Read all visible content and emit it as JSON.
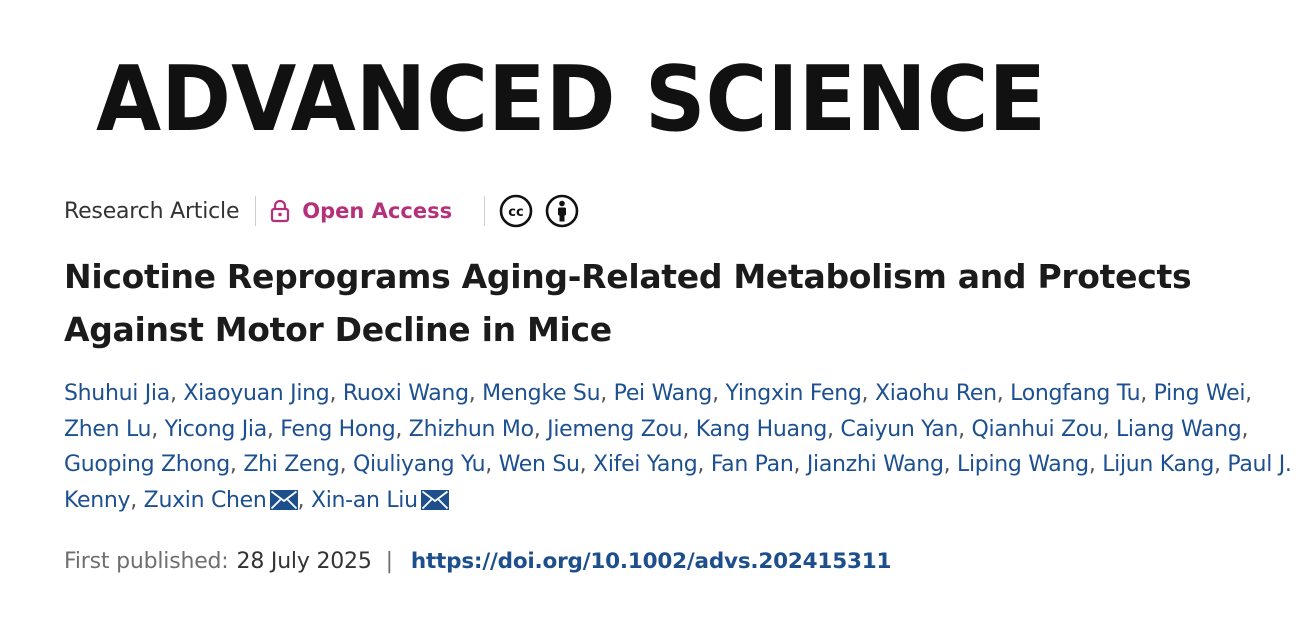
{
  "journal": {
    "name": "ADVANCED SCIENCE"
  },
  "meta": {
    "article_type": "Research Article",
    "access_label": "Open Access",
    "access_icon": "lock-icon",
    "license_icons": [
      "creative-commons-icon",
      "attribution-icon"
    ],
    "access_color": "#b5307a"
  },
  "article": {
    "title": "Nicotine Reprograms Aging-Related Metabolism and Protects Against Motor Decline in Mice"
  },
  "authors": [
    {
      "name": "Shuhui Jia",
      "corresponding": false
    },
    {
      "name": "Xiaoyuan Jing",
      "corresponding": false
    },
    {
      "name": "Ruoxi Wang",
      "corresponding": false
    },
    {
      "name": "Mengke Su",
      "corresponding": false
    },
    {
      "name": "Pei Wang",
      "corresponding": false
    },
    {
      "name": "Yingxin Feng",
      "corresponding": false
    },
    {
      "name": "Xiaohu Ren",
      "corresponding": false
    },
    {
      "name": "Longfang Tu",
      "corresponding": false
    },
    {
      "name": "Ping Wei",
      "corresponding": false
    },
    {
      "name": "Zhen Lu",
      "corresponding": false
    },
    {
      "name": "Yicong Jia",
      "corresponding": false
    },
    {
      "name": "Feng Hong",
      "corresponding": false
    },
    {
      "name": "Zhizhun Mo",
      "corresponding": false
    },
    {
      "name": "Jiemeng Zou",
      "corresponding": false
    },
    {
      "name": "Kang Huang",
      "corresponding": false
    },
    {
      "name": "Caiyun Yan",
      "corresponding": false
    },
    {
      "name": "Qianhui Zou",
      "corresponding": false
    },
    {
      "name": "Liang Wang",
      "corresponding": false
    },
    {
      "name": "Guoping Zhong",
      "corresponding": false
    },
    {
      "name": "Zhi Zeng",
      "corresponding": false
    },
    {
      "name": "Qiuliyang Yu",
      "corresponding": false
    },
    {
      "name": "Wen Su",
      "corresponding": false
    },
    {
      "name": "Xifei Yang",
      "corresponding": false
    },
    {
      "name": "Fan Pan",
      "corresponding": false
    },
    {
      "name": "Jianzhi Wang",
      "corresponding": false
    },
    {
      "name": "Liping Wang",
      "corresponding": false
    },
    {
      "name": "Lijun Kang",
      "corresponding": false
    },
    {
      "name": "Paul J. Kenny",
      "corresponding": false
    },
    {
      "name": "Zuxin Chen",
      "corresponding": true
    },
    {
      "name": "Xin-an Liu",
      "corresponding": true
    }
  ],
  "publication": {
    "first_published_label": "First published:",
    "date": "28 July 2025",
    "separator": "|",
    "doi": "https://doi.org/10.1002/advs.202415311"
  },
  "colors": {
    "author_link": "#1d5090",
    "doi_link": "#1d4f8c",
    "title_text": "#1b1b1b"
  }
}
